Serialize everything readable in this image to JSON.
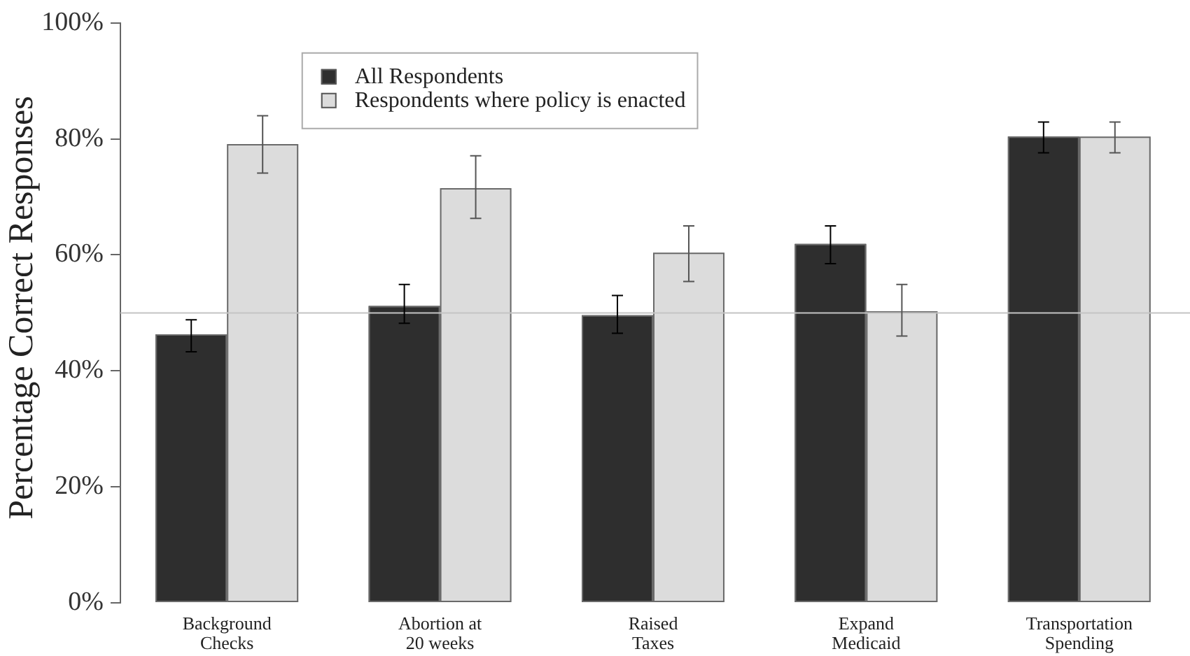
{
  "chart_data": {
    "type": "bar",
    "ylabel": "Percentage Correct Responses",
    "categories": [
      "Background\nChecks",
      "Abortion at\n20 weeks",
      "Raised\nTaxes",
      "Expand\nMedicaid",
      "Transportation\nSpending"
    ],
    "series": [
      {
        "name": "All Respondents",
        "color": "#2e2e2e",
        "values": [
          46.3,
          51.2,
          49.6,
          61.9,
          80.4
        ],
        "errors": [
          [
            43.3,
            48.8
          ],
          [
            48.2,
            54.9
          ],
          [
            46.5,
            53.0
          ],
          [
            58.5,
            65.0
          ],
          [
            77.6,
            82.9
          ]
        ]
      },
      {
        "name": "Respondents where policy is enacted",
        "color": "#dcdcdc",
        "values": [
          79.1,
          71.5,
          60.4,
          50.3,
          80.4
        ],
        "errors": [
          [
            74.1,
            84.0
          ],
          [
            66.3,
            77.1
          ],
          [
            55.4,
            65.0
          ],
          [
            46.0,
            54.9
          ],
          [
            77.6,
            82.9
          ]
        ]
      }
    ],
    "ylim": [
      0,
      100
    ],
    "yticks": [
      {
        "value": 0,
        "label": "0%"
      },
      {
        "value": 20,
        "label": "20%"
      },
      {
        "value": 40,
        "label": "40%"
      },
      {
        "value": 60,
        "label": "60%"
      },
      {
        "value": 80,
        "label": "80%"
      },
      {
        "value": 100,
        "label": "100%"
      }
    ],
    "ref_lines": [
      {
        "axis": "y",
        "value": 50,
        "color": "#c4c4c4"
      }
    ],
    "grid": false,
    "legend": "top left"
  }
}
